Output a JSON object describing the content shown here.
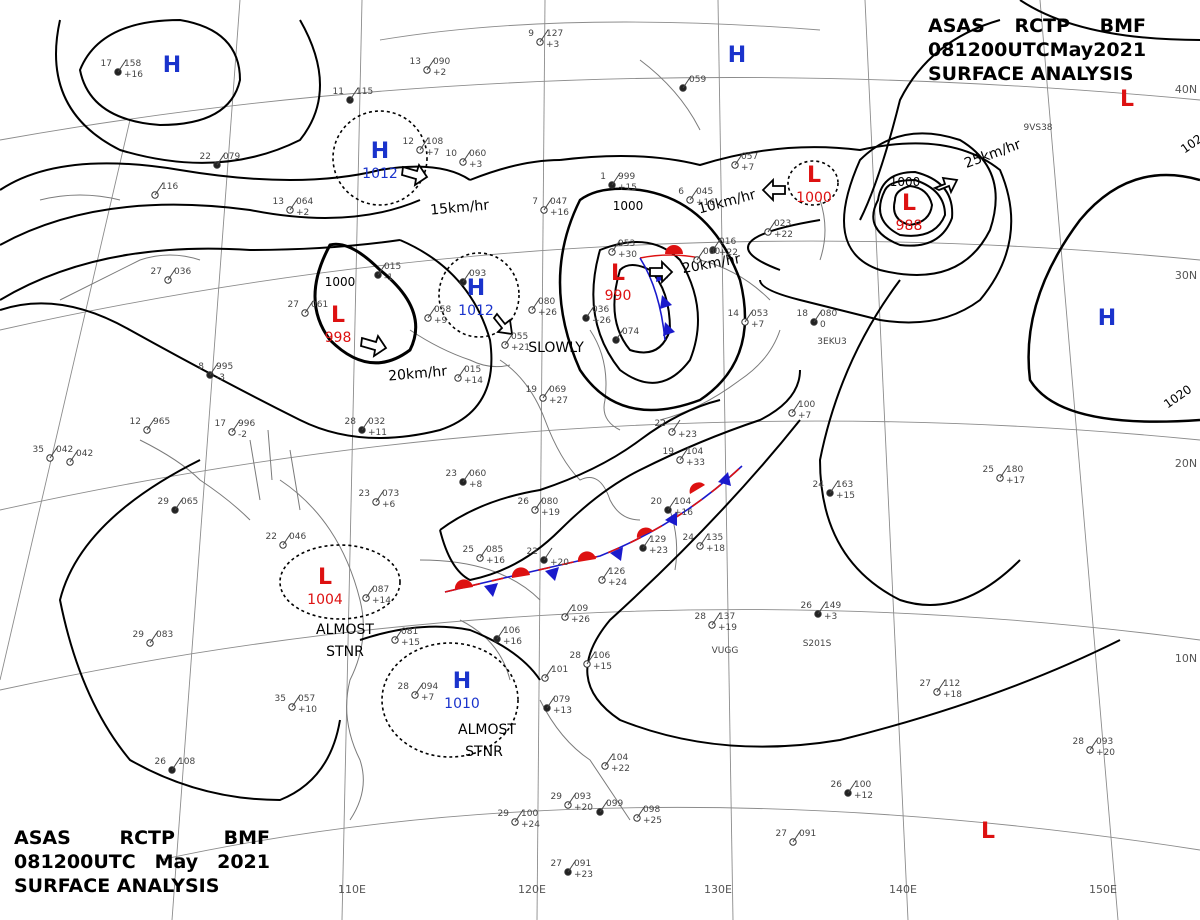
{
  "header": {
    "line1": [
      "ASAS",
      "RCTP",
      "BMF"
    ],
    "line2": [
      "081200UTC",
      "May",
      "2021"
    ],
    "line3": "SURFACE ANALYSIS"
  },
  "longitude_labels": [
    "110E",
    "120E",
    "130E",
    "140E",
    "150E"
  ],
  "latitude_labels": [
    "40N",
    "30N",
    "20N",
    "10N"
  ],
  "pressure_centers": [
    {
      "type": "H",
      "pressure": "",
      "color": "#1a33cc"
    },
    {
      "type": "H",
      "pressure": "",
      "color": "#1a33cc"
    },
    {
      "type": "H",
      "pressure": "1012",
      "color": "#1a33cc"
    },
    {
      "type": "H",
      "pressure": "1012",
      "color": "#1a33cc"
    },
    {
      "type": "H",
      "pressure": "",
      "color": "#1a33cc"
    },
    {
      "type": "H",
      "pressure": "1010",
      "color": "#1a33cc"
    },
    {
      "type": "L",
      "pressure": "998",
      "color": "#dd1111"
    },
    {
      "type": "L",
      "pressure": "990",
      "color": "#dd1111"
    },
    {
      "type": "L",
      "pressure": "1000",
      "color": "#dd1111"
    },
    {
      "type": "L",
      "pressure": "988",
      "color": "#dd1111"
    },
    {
      "type": "L",
      "pressure": "1004",
      "color": "#dd1111"
    },
    {
      "type": "L",
      "pressure": "",
      "color": "#dd1111"
    },
    {
      "type": "L",
      "pressure": "",
      "color": "#dd1111"
    }
  ],
  "isobar_labels": [
    "1000",
    "1000",
    "1000",
    "1020",
    "1020"
  ],
  "movement_labels": [
    "15km/hr",
    "20km/hr",
    "10km/hr",
    "20km/hr",
    "25km/hr",
    "SLOWLY"
  ],
  "stationary_notes": [
    "ALMOST",
    "STNR",
    "ALMOST",
    "STNR"
  ],
  "station_plots": [
    {
      "t": "17",
      "p": "158",
      "tend": "+16"
    },
    {
      "t": "9",
      "p": "127",
      "tend": "+3"
    },
    {
      "t": "13",
      "p": "090",
      "tend": "+2"
    },
    {
      "t": "11",
      "p": "115",
      "tend": ""
    },
    {
      "t": "12",
      "p": "108",
      "tend": "+7"
    },
    {
      "t": "10",
      "p": "060",
      "tend": "+3"
    },
    {
      "t": "22",
      "p": "079",
      "tend": ""
    },
    {
      "t": "13",
      "p": "064",
      "tend": "+2"
    },
    {
      "t": "",
      "p": "116",
      "tend": ""
    },
    {
      "t": "1",
      "p": "999",
      "tend": "+15"
    },
    {
      "t": "7",
      "p": "047",
      "tend": "+16"
    },
    {
      "t": "6",
      "p": "045",
      "tend": "+16"
    },
    {
      "t": "",
      "p": "016",
      "tend": "+22"
    },
    {
      "t": "",
      "p": "023",
      "tend": "+22"
    },
    {
      "t": "",
      "p": "953",
      "tend": "+30"
    },
    {
      "t": "",
      "p": "093",
      "tend": ""
    },
    {
      "t": "",
      "p": "058",
      "tend": "+9"
    },
    {
      "t": "",
      "p": "080",
      "tend": "+26"
    },
    {
      "t": "",
      "p": "036",
      "tend": "+26"
    },
    {
      "t": "",
      "p": "055",
      "tend": "+21"
    },
    {
      "t": "",
      "p": "015",
      "tend": "+14"
    },
    {
      "t": "",
      "p": "015",
      "tend": "-1"
    },
    {
      "t": "27",
      "p": "036",
      "tend": ""
    },
    {
      "t": "27",
      "p": "061",
      "tend": ""
    },
    {
      "t": "8",
      "p": "995",
      "tend": "-3"
    },
    {
      "t": "12",
      "p": "965",
      "tend": ""
    },
    {
      "t": "17",
      "p": "996",
      "tend": "-2"
    },
    {
      "t": "28",
      "p": "032",
      "tend": "+11"
    },
    {
      "t": "19",
      "p": "069",
      "tend": "+27"
    },
    {
      "t": "35",
      "p": "042",
      "tend": ""
    },
    {
      "t": "23",
      "p": "060",
      "tend": "+8"
    },
    {
      "t": "23",
      "p": "073",
      "tend": "+6"
    },
    {
      "t": "26",
      "p": "080",
      "tend": "+19"
    },
    {
      "t": "29",
      "p": "065",
      "tend": ""
    },
    {
      "t": "22",
      "p": "046",
      "tend": ""
    },
    {
      "t": "25",
      "p": "085",
      "tend": "+16"
    },
    {
      "t": "22",
      "p": "",
      "tend": "+20"
    },
    {
      "t": "",
      "p": "087",
      "tend": "+14"
    },
    {
      "t": "",
      "p": "109",
      "tend": "+26"
    },
    {
      "t": "",
      "p": "129",
      "tend": "+23"
    },
    {
      "t": "",
      "p": "126",
      "tend": "+24"
    },
    {
      "t": "24",
      "p": "135",
      "tend": "+18"
    },
    {
      "t": "20",
      "p": "104",
      "tend": "+16"
    },
    {
      "t": "19",
      "p": "104",
      "tend": "+33"
    },
    {
      "t": "22",
      "p": "",
      "tend": "+23"
    },
    {
      "t": "18",
      "p": "080",
      "tend": "0"
    },
    {
      "t": "14",
      "p": "053",
      "tend": "+7"
    },
    {
      "t": "",
      "p": "100",
      "tend": "+7"
    },
    {
      "t": "24",
      "p": "163",
      "tend": "+15"
    },
    {
      "t": "25",
      "p": "180",
      "tend": "+17"
    },
    {
      "t": "28",
      "p": "137",
      "tend": "+19"
    },
    {
      "t": "26",
      "p": "149",
      "tend": "+3"
    },
    {
      "t": "29",
      "p": "083",
      "tend": ""
    },
    {
      "t": "",
      "p": "081",
      "tend": "+15"
    },
    {
      "t": "",
      "p": "106",
      "tend": "+16"
    },
    {
      "t": "28",
      "p": "106",
      "tend": "+15"
    },
    {
      "t": "",
      "p": "101",
      "tend": ""
    },
    {
      "t": "",
      "p": "079",
      "tend": "+13"
    },
    {
      "t": "28",
      "p": "094",
      "tend": "+7"
    },
    {
      "t": "35",
      "p": "057",
      "tend": "+10"
    },
    {
      "t": "26",
      "p": "108",
      "tend": ""
    },
    {
      "t": "",
      "p": "104",
      "tend": "+22"
    },
    {
      "t": "29",
      "p": "093",
      "tend": "+20"
    },
    {
      "t": "",
      "p": "099",
      "tend": ""
    },
    {
      "t": "",
      "p": "098",
      "tend": "+25"
    },
    {
      "t": "29",
      "p": "100",
      "tend": "+24"
    },
    {
      "t": "27",
      "p": "091",
      "tend": "+23"
    },
    {
      "t": "27",
      "p": "091",
      "tend": ""
    },
    {
      "t": "27",
      "p": "112",
      "tend": "+18"
    },
    {
      "t": "26",
      "p": "100",
      "tend": "+12"
    },
    {
      "t": "28",
      "p": "093",
      "tend": "+20"
    },
    {
      "t": "",
      "p": "042",
      "tend": ""
    },
    {
      "t": "",
      "p": "059",
      "tend": ""
    },
    {
      "t": "",
      "p": "057",
      "tend": "+7"
    },
    {
      "t": "",
      "p": "060",
      "tend": ""
    },
    {
      "t": "",
      "p": "074",
      "tend": ""
    }
  ],
  "ship_ids": [
    "3EKU3",
    "VUGG",
    "S201S",
    "9VS38"
  ]
}
